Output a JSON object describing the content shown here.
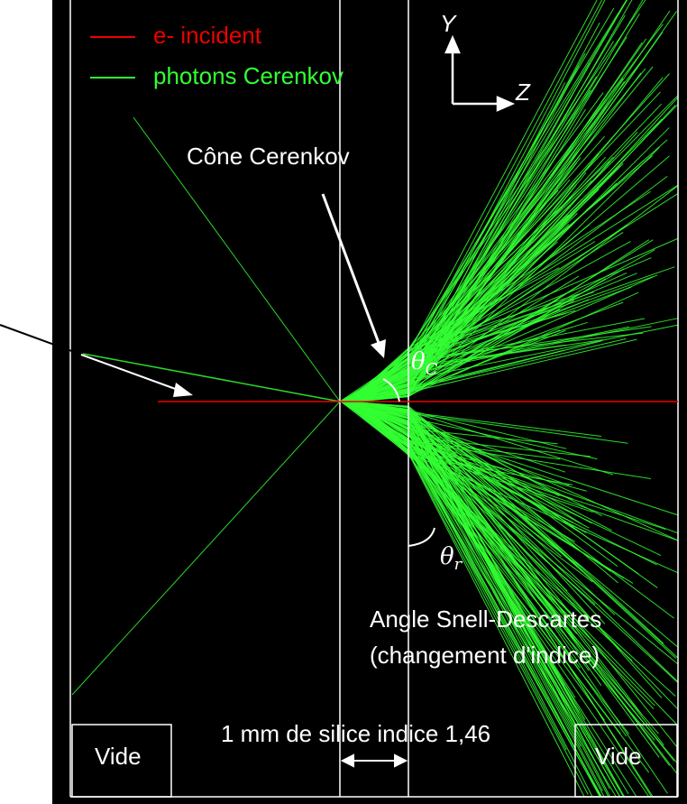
{
  "legend": [
    {
      "label": "e- incident"
    },
    {
      "label": "photons Cerenkov"
    }
  ],
  "axes": {
    "y": "Y",
    "z": "Z"
  },
  "annotations": {
    "cone": "Cône Cerenkov",
    "theta_c": {
      "symbol": "θ",
      "subscript": "C"
    },
    "theta_r": {
      "symbol": "θ",
      "subscript": "r"
    },
    "snell_line1": "Angle  Snell-Descartes",
    "snell_line2": "(changement d'indice)",
    "thickness": "1 mm de silice indice 1,46"
  },
  "regions": {
    "left": "Vide",
    "right": "Vide"
  }
}
